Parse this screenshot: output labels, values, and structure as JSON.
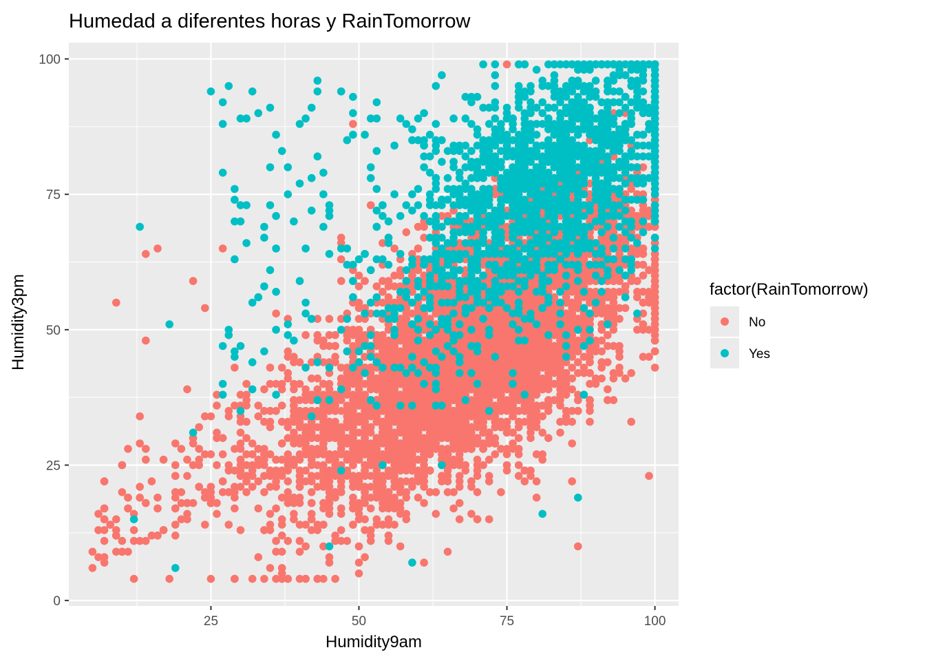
{
  "chart_data": {
    "type": "scatter",
    "title": "Humedad a diferentes horas y RainTomorrow",
    "xlabel": "Humidity9am",
    "ylabel": "Humidity3pm",
    "xlim": [
      1,
      104
    ],
    "ylim": [
      -1,
      103
    ],
    "xticks": [
      "25",
      "50",
      "75",
      "100"
    ],
    "yticks": [
      "0",
      "25",
      "50",
      "75",
      "100"
    ],
    "xtick_values": [
      25,
      50,
      75,
      100
    ],
    "ytick_values": [
      0,
      25,
      50,
      75,
      100
    ],
    "grid": true,
    "legend": {
      "title": "factor(RainTomorrow)",
      "position": "right"
    },
    "series": [
      {
        "name": "No",
        "color": "#f8766d",
        "points": []
      },
      {
        "name": "Yes",
        "color": "#00bfc4",
        "points": []
      }
    ]
  }
}
